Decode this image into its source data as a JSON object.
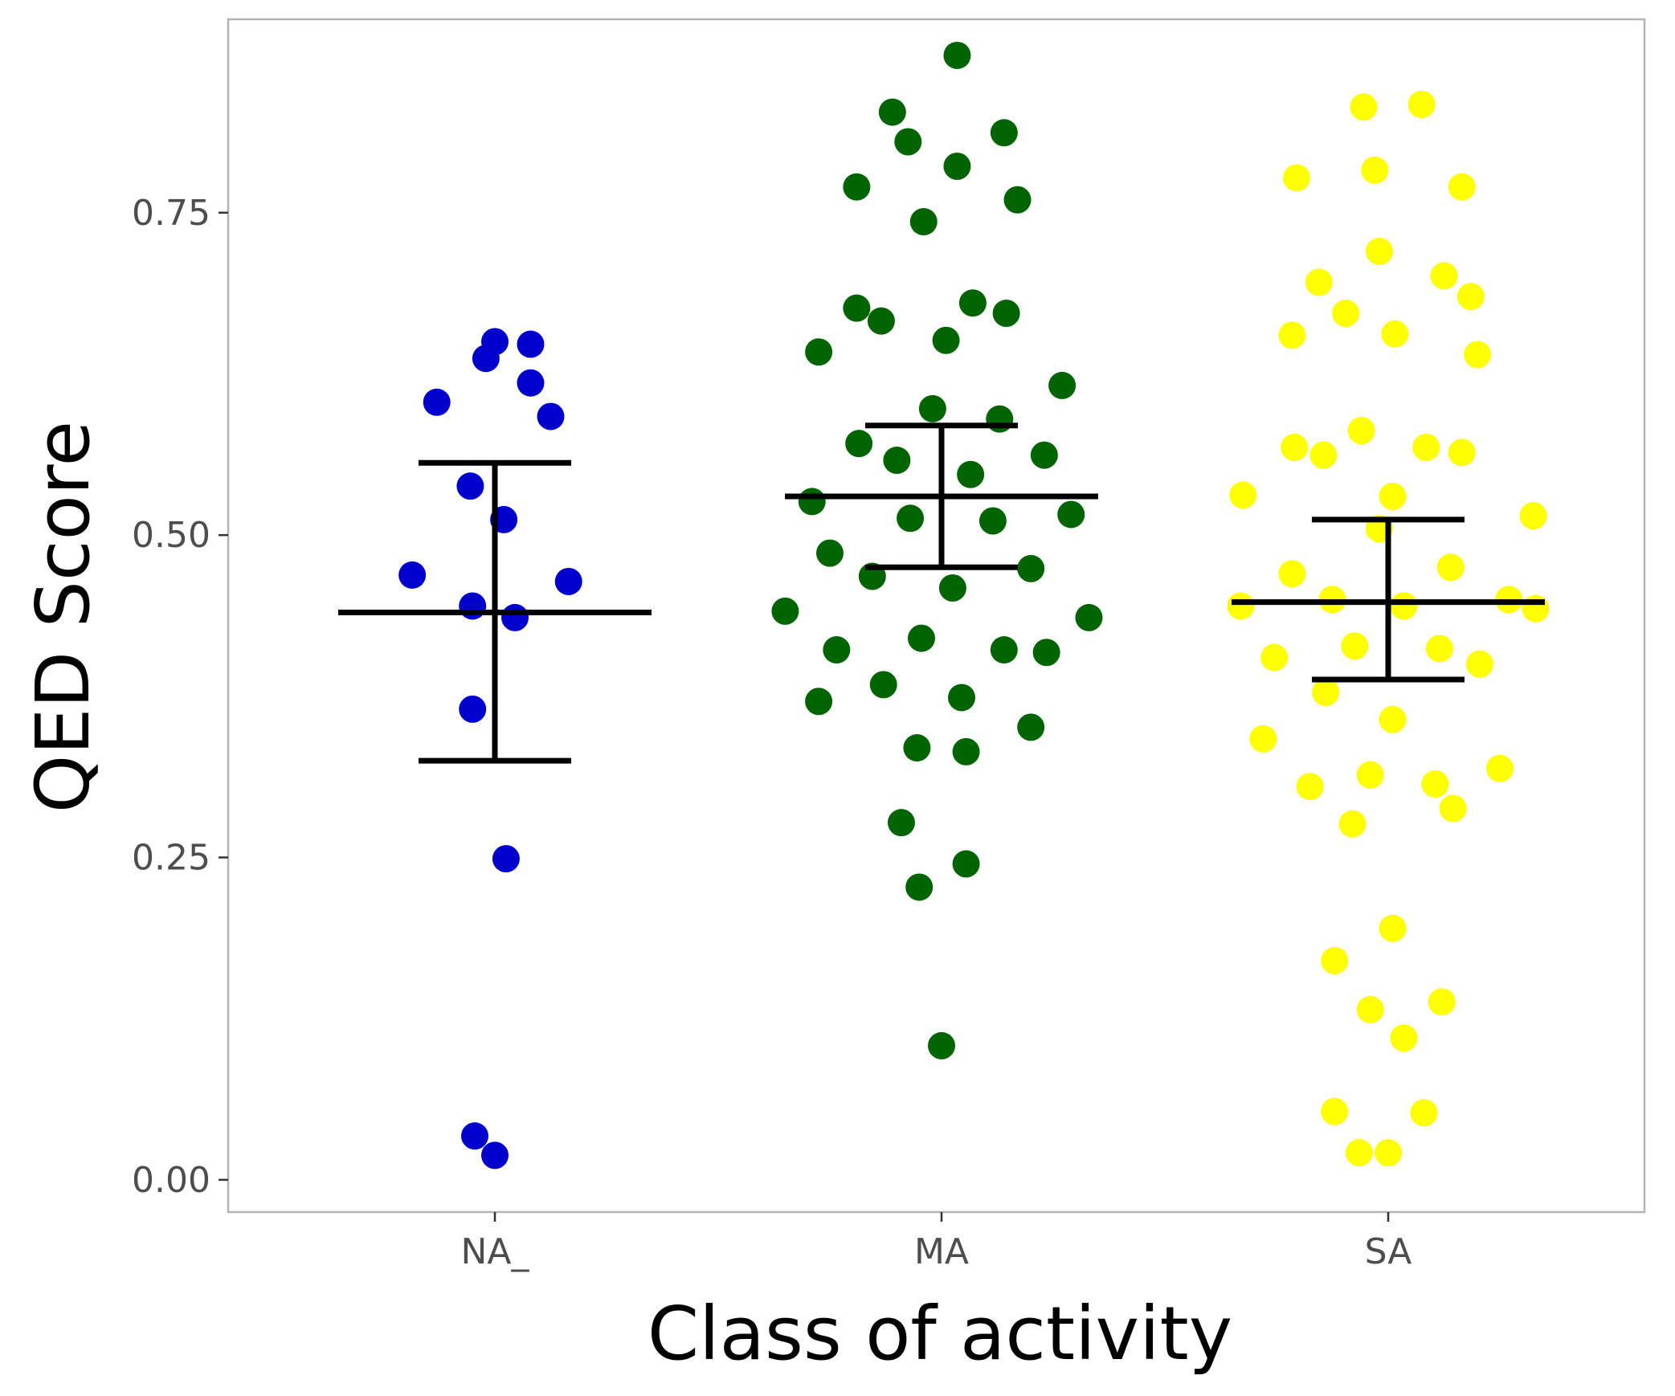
{
  "chart_data": {
    "type": "scatter",
    "subtype": "beeswarm-with-mean-and-error-bars",
    "title": "",
    "xlabel": "Class of activity",
    "ylabel": "QED Score",
    "ylim": [
      -0.025,
      0.9
    ],
    "yticks": [
      0.0,
      0.25,
      0.5,
      0.75
    ],
    "ytick_labels": [
      "0.00",
      "0.25",
      "0.50",
      "0.75"
    ],
    "grid": false,
    "legend": "none",
    "categories": [
      "NA_",
      "MA",
      "SA"
    ],
    "series": [
      {
        "name": "NA_",
        "color": "#0000cc",
        "summary": {
          "mean": 0.44,
          "lower": 0.325,
          "upper": 0.556
        },
        "points": [
          {
            "x": 0.0,
            "y": 0.65
          },
          {
            "x": -0.02,
            "y": 0.637
          },
          {
            "x": 0.08,
            "y": 0.648
          },
          {
            "x": -0.13,
            "y": 0.603
          },
          {
            "x": 0.08,
            "y": 0.618
          },
          {
            "x": 0.125,
            "y": 0.592
          },
          {
            "x": -0.055,
            "y": 0.538
          },
          {
            "x": 0.02,
            "y": 0.512
          },
          {
            "x": -0.185,
            "y": 0.469
          },
          {
            "x": 0.165,
            "y": 0.464
          },
          {
            "x": -0.05,
            "y": 0.445
          },
          {
            "x": 0.045,
            "y": 0.436
          },
          {
            "x": -0.05,
            "y": 0.365
          },
          {
            "x": 0.025,
            "y": 0.249
          },
          {
            "x": -0.045,
            "y": 0.034
          },
          {
            "x": 0.0,
            "y": 0.019
          }
        ]
      },
      {
        "name": "MA",
        "color": "#006400",
        "summary": {
          "mean": 0.53,
          "lower": 0.475,
          "upper": 0.585
        },
        "points": [
          {
            "x": 0.035,
            "y": 0.872
          },
          {
            "x": -0.11,
            "y": 0.828
          },
          {
            "x": 0.14,
            "y": 0.812
          },
          {
            "x": -0.075,
            "y": 0.805
          },
          {
            "x": 0.035,
            "y": 0.786
          },
          {
            "x": -0.19,
            "y": 0.77
          },
          {
            "x": 0.17,
            "y": 0.76
          },
          {
            "x": -0.04,
            "y": 0.743
          },
          {
            "x": 0.07,
            "y": 0.68
          },
          {
            "x": -0.19,
            "y": 0.676
          },
          {
            "x": 0.145,
            "y": 0.672
          },
          {
            "x": -0.135,
            "y": 0.666
          },
          {
            "x": 0.01,
            "y": 0.651
          },
          {
            "x": -0.275,
            "y": 0.642
          },
          {
            "x": 0.27,
            "y": 0.616
          },
          {
            "x": -0.02,
            "y": 0.598
          },
          {
            "x": 0.13,
            "y": 0.59
          },
          {
            "x": -0.185,
            "y": 0.571
          },
          {
            "x": 0.23,
            "y": 0.562
          },
          {
            "x": -0.1,
            "y": 0.558
          },
          {
            "x": 0.065,
            "y": 0.547
          },
          {
            "x": -0.29,
            "y": 0.526
          },
          {
            "x": 0.29,
            "y": 0.516
          },
          {
            "x": -0.07,
            "y": 0.513
          },
          {
            "x": 0.115,
            "y": 0.511
          },
          {
            "x": -0.25,
            "y": 0.486
          },
          {
            "x": 0.2,
            "y": 0.474
          },
          {
            "x": -0.155,
            "y": 0.468
          },
          {
            "x": 0.025,
            "y": 0.459
          },
          {
            "x": -0.35,
            "y": 0.441
          },
          {
            "x": 0.33,
            "y": 0.436
          },
          {
            "x": -0.045,
            "y": 0.42
          },
          {
            "x": 0.14,
            "y": 0.411
          },
          {
            "x": -0.235,
            "y": 0.411
          },
          {
            "x": 0.235,
            "y": 0.409
          },
          {
            "x": -0.13,
            "y": 0.384
          },
          {
            "x": 0.045,
            "y": 0.374
          },
          {
            "x": -0.275,
            "y": 0.371
          },
          {
            "x": 0.2,
            "y": 0.351
          },
          {
            "x": -0.055,
            "y": 0.335
          },
          {
            "x": 0.055,
            "y": 0.332
          },
          {
            "x": -0.09,
            "y": 0.277
          },
          {
            "x": 0.055,
            "y": 0.245
          },
          {
            "x": -0.05,
            "y": 0.227
          },
          {
            "x": 0.0,
            "y": 0.104
          }
        ]
      },
      {
        "name": "SA",
        "color": "#ffff00",
        "summary": {
          "mean": 0.448,
          "lower": 0.388,
          "upper": 0.512
        },
        "points": [
          {
            "x": -0.055,
            "y": 0.832
          },
          {
            "x": 0.075,
            "y": 0.834
          },
          {
            "x": -0.205,
            "y": 0.777
          },
          {
            "x": -0.03,
            "y": 0.783
          },
          {
            "x": 0.165,
            "y": 0.77
          },
          {
            "x": -0.02,
            "y": 0.72
          },
          {
            "x": 0.125,
            "y": 0.701
          },
          {
            "x": -0.155,
            "y": 0.696
          },
          {
            "x": 0.185,
            "y": 0.685
          },
          {
            "x": -0.095,
            "y": 0.672
          },
          {
            "x": 0.015,
            "y": 0.656
          },
          {
            "x": -0.215,
            "y": 0.655
          },
          {
            "x": 0.2,
            "y": 0.64
          },
          {
            "x": -0.06,
            "y": 0.581
          },
          {
            "x": 0.085,
            "y": 0.568
          },
          {
            "x": -0.21,
            "y": 0.568
          },
          {
            "x": 0.165,
            "y": 0.564
          },
          {
            "x": -0.145,
            "y": 0.562
          },
          {
            "x": 0.01,
            "y": 0.53
          },
          {
            "x": -0.325,
            "y": 0.531
          },
          {
            "x": 0.325,
            "y": 0.515
          },
          {
            "x": -0.02,
            "y": 0.505
          },
          {
            "x": 0.14,
            "y": 0.475
          },
          {
            "x": -0.215,
            "y": 0.47
          },
          {
            "x": -0.125,
            "y": 0.45
          },
          {
            "x": 0.27,
            "y": 0.45
          },
          {
            "x": -0.33,
            "y": 0.445
          },
          {
            "x": 0.035,
            "y": 0.445
          },
          {
            "x": 0.33,
            "y": 0.443
          },
          {
            "x": -0.075,
            "y": 0.414
          },
          {
            "x": 0.115,
            "y": 0.412
          },
          {
            "x": -0.255,
            "y": 0.405
          },
          {
            "x": 0.205,
            "y": 0.4
          },
          {
            "x": -0.14,
            "y": 0.378
          },
          {
            "x": 0.01,
            "y": 0.357
          },
          {
            "x": -0.28,
            "y": 0.342
          },
          {
            "x": 0.25,
            "y": 0.319
          },
          {
            "x": -0.04,
            "y": 0.314
          },
          {
            "x": 0.105,
            "y": 0.307
          },
          {
            "x": -0.175,
            "y": 0.305
          },
          {
            "x": 0.145,
            "y": 0.288
          },
          {
            "x": -0.08,
            "y": 0.276
          },
          {
            "x": 0.01,
            "y": 0.195
          },
          {
            "x": -0.12,
            "y": 0.17
          },
          {
            "x": 0.12,
            "y": 0.138
          },
          {
            "x": -0.04,
            "y": 0.132
          },
          {
            "x": 0.035,
            "y": 0.11
          },
          {
            "x": -0.12,
            "y": 0.053
          },
          {
            "x": 0.08,
            "y": 0.052
          },
          {
            "x": -0.065,
            "y": 0.021
          },
          {
            "x": 0.0,
            "y": 0.021
          }
        ]
      }
    ]
  }
}
